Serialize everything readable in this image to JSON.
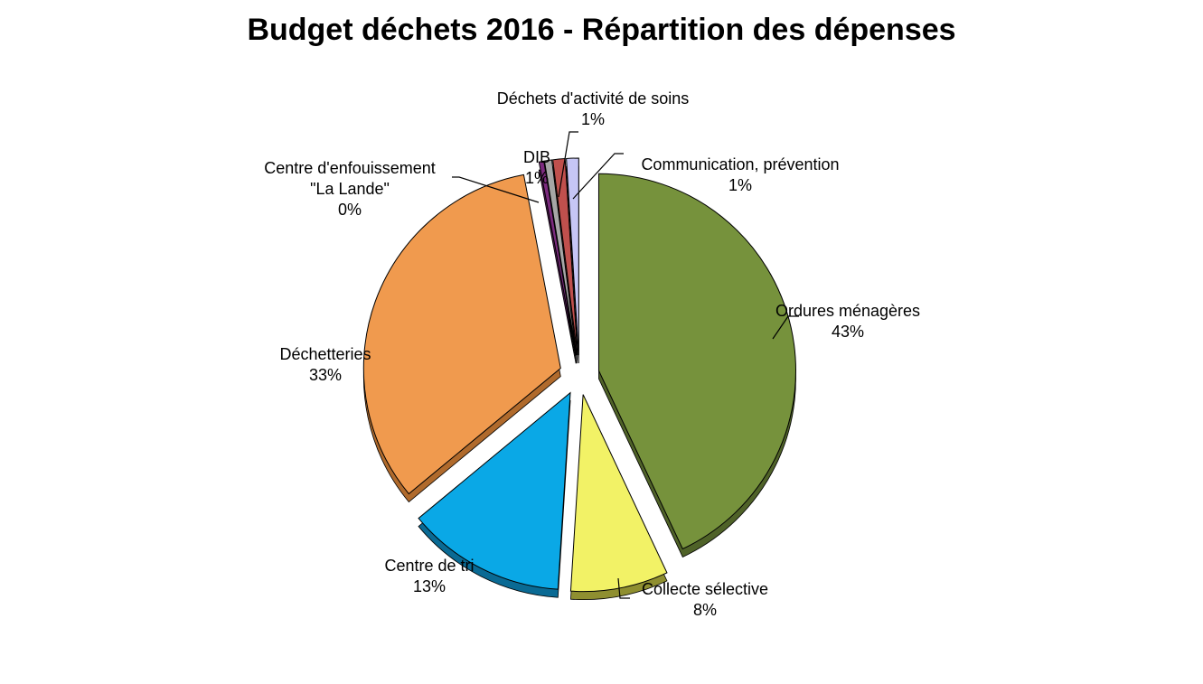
{
  "chart_data": {
    "type": "pie",
    "title": "Budget déchets 2016 - Répartition des dépenses",
    "slices": [
      {
        "label": [
          "Ordures ménagères"
        ],
        "value": 43,
        "display": "43%",
        "color": "#76923C",
        "side": "#4F6228"
      },
      {
        "label": [
          "Collecte sélective"
        ],
        "value": 8,
        "display": "8%",
        "color": "#F2F266",
        "side": "#8F8F30"
      },
      {
        "label": [
          "Centre de tri"
        ],
        "value": 13,
        "display": "13%",
        "color": "#0AA8E6",
        "side": "#0A6A94"
      },
      {
        "label": [
          "Déchetteries"
        ],
        "value": 33,
        "display": "33%",
        "color": "#F09A4E",
        "side": "#B06A2C"
      },
      {
        "label": [
          "Centre d'enfouissement",
          "\"La Lande\""
        ],
        "value": 0.4,
        "display": "0%",
        "color": "#7B2A7E",
        "side": "#4A184C"
      },
      {
        "label": [
          "DIB"
        ],
        "value": 0.6,
        "display": "1%",
        "color": "#A6A6A6",
        "side": "#6B6B6B"
      },
      {
        "label": [
          "Déchets d'activité de soins"
        ],
        "value": 1,
        "display": "1%",
        "color": "#C0504D",
        "side": "#7E3230"
      },
      {
        "label": [
          "Communication, prévention"
        ],
        "value": 1,
        "display": "1%",
        "color": "#C6C6F5",
        "side": "#8A8AC0"
      }
    ]
  }
}
